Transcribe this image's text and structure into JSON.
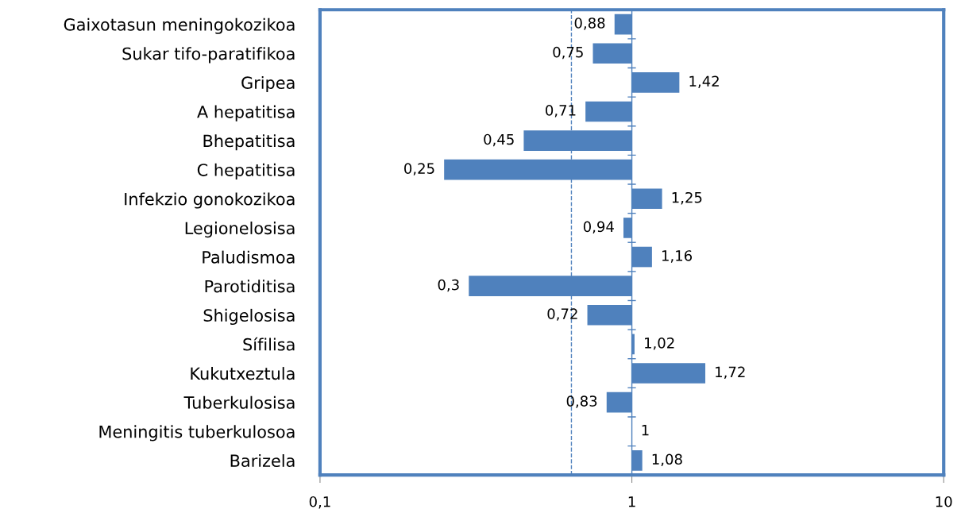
{
  "chart_data": {
    "type": "bar",
    "orientation": "horizontal",
    "log": "x",
    "categories": [
      "Gaixotasun meningokozikoa",
      "Sukar tifo-paratifikoa",
      "Gripea",
      "A hepatitisa",
      "Bhepatitisa",
      "C hepatitisa",
      "Infekzio gonokozikoa",
      "Legionelosisa",
      "Paludismoa",
      "Parotiditisa",
      "Shigelosisa",
      "Sífilisa",
      "Kukutxeztula",
      "Tuberkulosisa",
      "Meningitis tuberkulosoa",
      "Barizela"
    ],
    "base": [
      1,
      1,
      1,
      1,
      1,
      1,
      1,
      1,
      1,
      1,
      1,
      1,
      1,
      1,
      null,
      1
    ],
    "values": [
      -0.12,
      -0.25,
      0.42,
      -0.29,
      -0.55,
      -0.75,
      0.25,
      -0.06,
      0.16,
      -0.7,
      -0.28,
      0.02,
      0.72,
      -0.17,
      null,
      0.08
    ],
    "value_labels": [
      "0,88",
      "0,75",
      "1,42",
      "0,71",
      "0,45",
      "0,25",
      "1,25",
      "0,94",
      "1,16",
      "0,3",
      "0,72",
      "1,02",
      "1,72",
      "0,83",
      "1",
      "1,08"
    ],
    "color": "#4f81bd",
    "xlim": [
      0.1,
      10
    ],
    "xticks": [
      {
        "value": 0.1,
        "label": "0,1"
      },
      1,
      10
    ],
    "ref_lines": [
      {
        "axis": "x",
        "value": 0.64,
        "color": "#4f81bd",
        "line_style": "dashed"
      },
      {
        "axis": "x",
        "value": 1,
        "color": "#4f81bd",
        "line_style": "solid"
      }
    ],
    "grid": false
  }
}
